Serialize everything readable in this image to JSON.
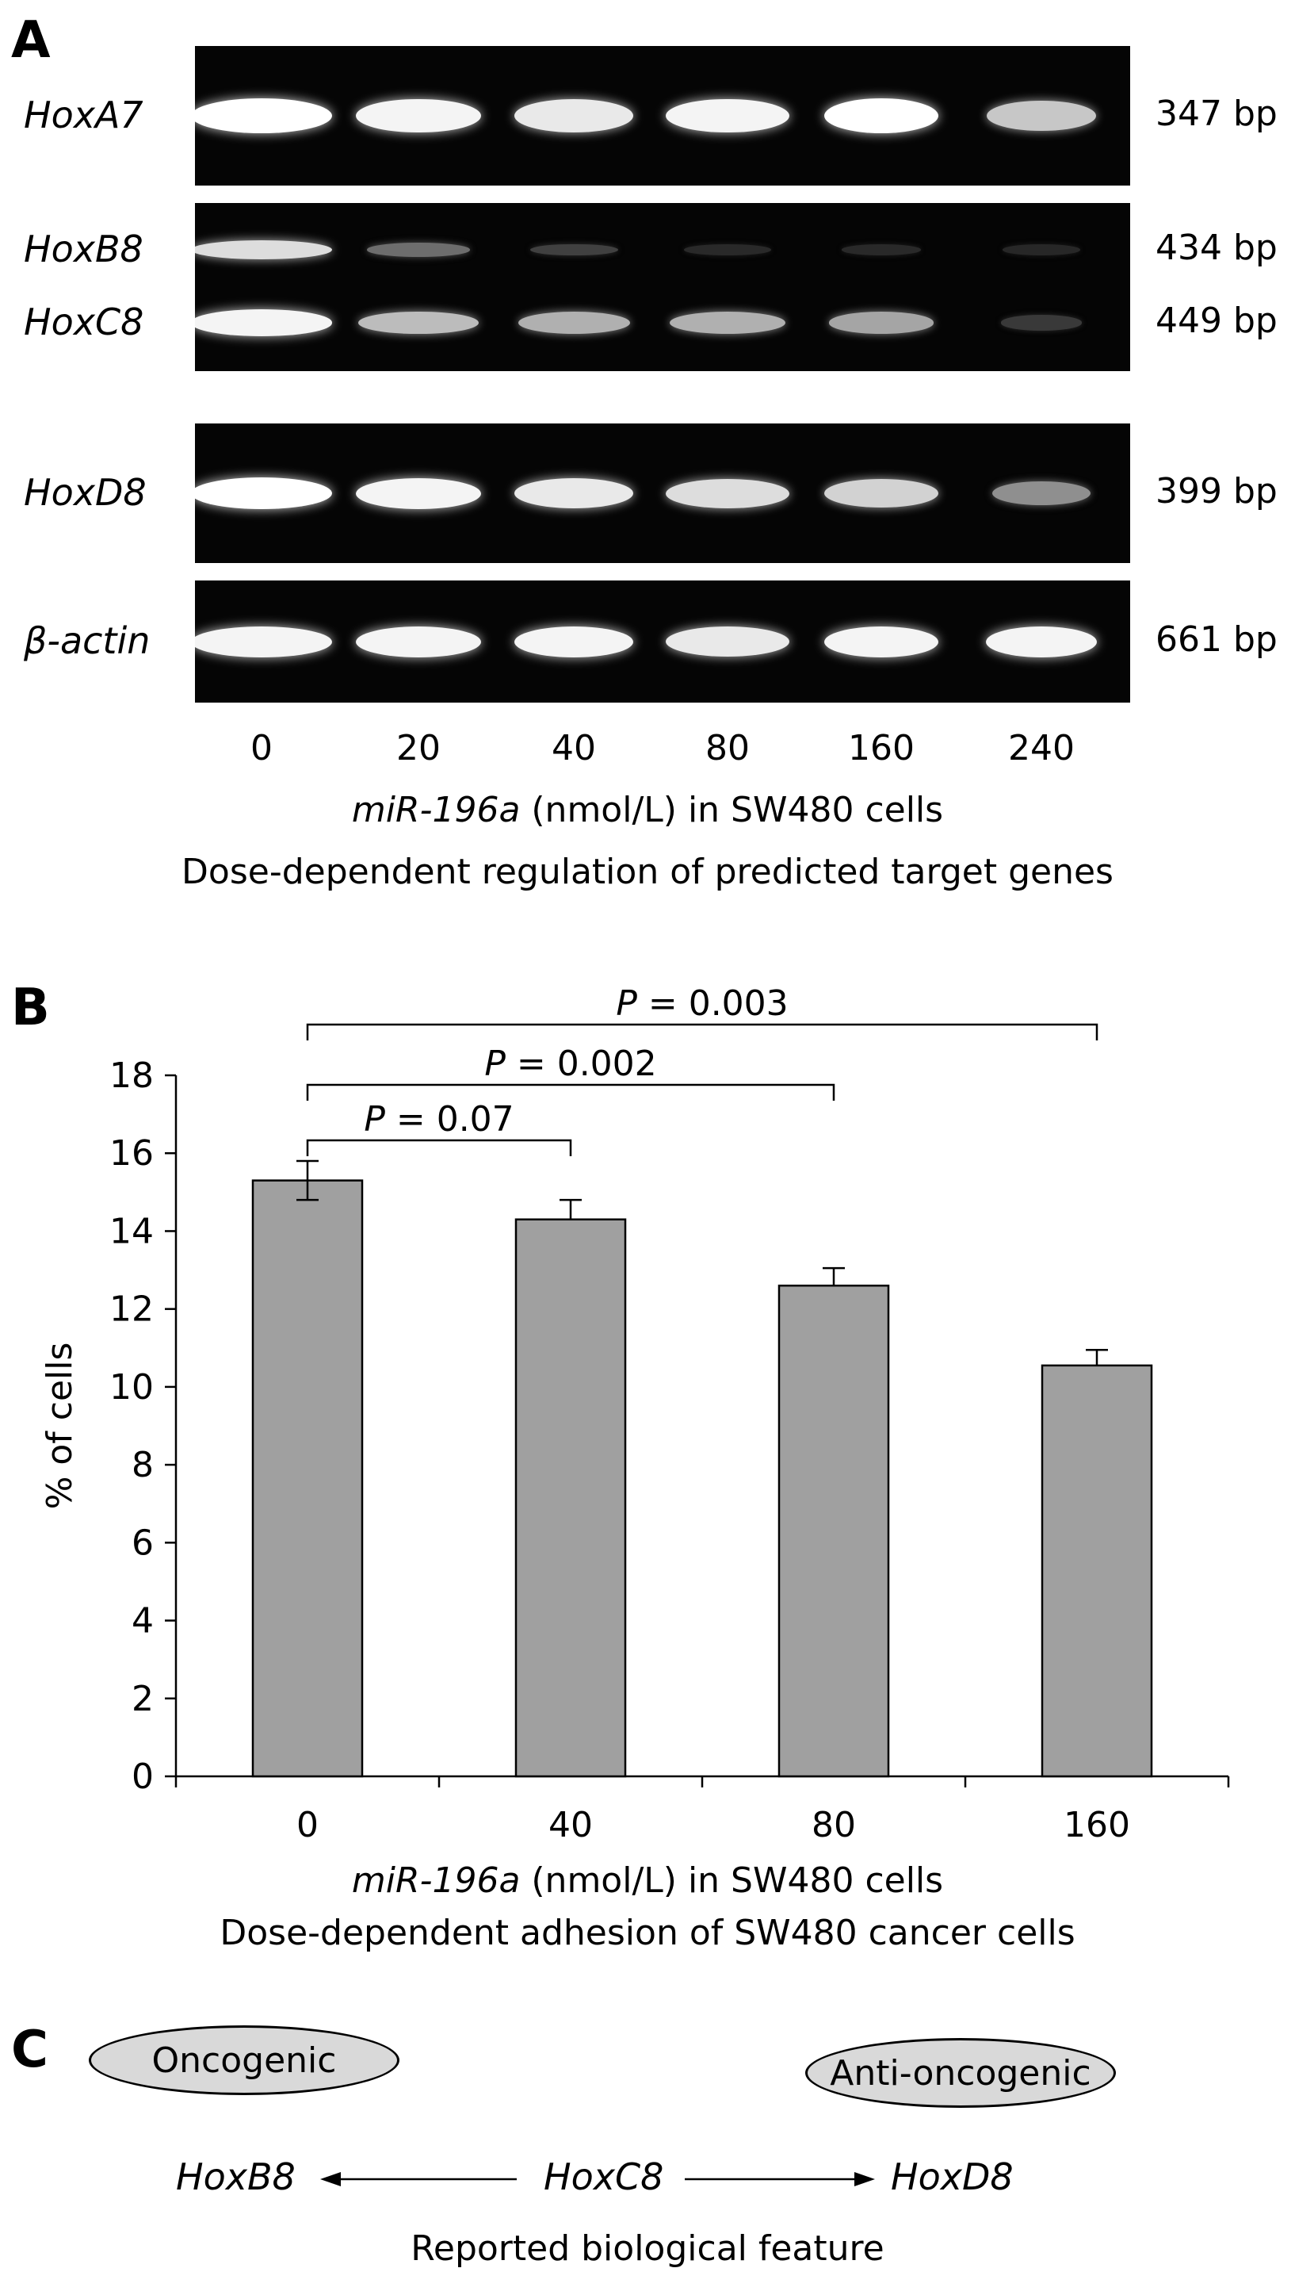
{
  "panel_a": {
    "letter": "A",
    "genes": [
      {
        "name": "HoxA7",
        "size": "347 bp",
        "intensity": [
          1.0,
          0.95,
          0.9,
          0.95,
          1.0,
          0.75
        ]
      },
      {
        "name": "HoxB8",
        "size": "434 bp",
        "intensity": [
          0.85,
          0.35,
          0.15,
          0.05,
          0.05,
          0.04
        ]
      },
      {
        "name": "HoxC8",
        "size": "449 bp",
        "intensity": [
          0.95,
          0.7,
          0.65,
          0.65,
          0.6,
          0.12
        ]
      },
      {
        "name": "HoxD8",
        "size": "399 bp",
        "intensity": [
          1.0,
          0.95,
          0.9,
          0.85,
          0.8,
          0.5
        ]
      },
      {
        "name": "β-actin",
        "size": "661 bp",
        "intensity": [
          0.95,
          0.95,
          0.95,
          0.9,
          0.95,
          0.95
        ]
      }
    ],
    "lanes": [
      "0",
      "20",
      "40",
      "80",
      "160",
      "240"
    ],
    "xlabel_italic": "miR-196a",
    "xlabel_rest": " (nmol/L) in SW480 cells",
    "caption": "Dose-dependent regulation of predicted target genes"
  },
  "panel_b": {
    "letter": "B",
    "xlabel_italic": "miR-196a",
    "xlabel_rest": " (nmol/L) in SW480 cells",
    "caption": "Dose-dependent adhesion of SW480 cancer cells"
  },
  "chart_data": {
    "type": "bar",
    "categories": [
      "0",
      "40",
      "80",
      "160"
    ],
    "values": [
      15.3,
      14.3,
      12.6,
      10.55
    ],
    "errors": [
      0.5,
      0.5,
      0.45,
      0.4
    ],
    "ylabel": "% of cells",
    "ylim": [
      0,
      18
    ],
    "yticks": [
      "0",
      "2",
      "4",
      "6",
      "8",
      "10",
      "12",
      "14",
      "16",
      "18"
    ],
    "bar_color": "#a0a0a0",
    "comparisons": [
      {
        "from": 0,
        "to": 1,
        "label_italic": "P",
        "label_rest": " = 0.07"
      },
      {
        "from": 0,
        "to": 2,
        "label_italic": "P",
        "label_rest": " = 0.002"
      },
      {
        "from": 0,
        "to": 3,
        "label_italic": "P",
        "label_rest": " = 0.003"
      }
    ]
  },
  "panel_c": {
    "letter": "C",
    "oncogenic": "Oncogenic",
    "anti_oncogenic": "Anti-oncogenic",
    "left_gene": "HoxB8",
    "center_gene": "HoxC8",
    "right_gene": "HoxD8",
    "caption": "Reported biological feature"
  }
}
